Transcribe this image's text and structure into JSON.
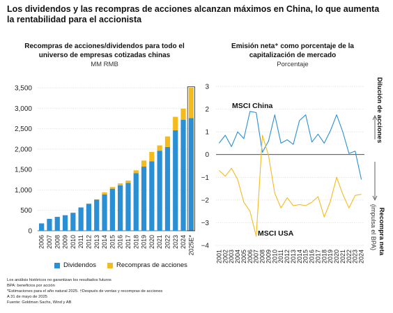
{
  "title": "Los dividendos y las recompras de acciones alcanzan máximos en China, lo que aumenta la rentabilidad para el accionista",
  "chart_data": [
    {
      "type": "bar",
      "title": "Recompras de acciones/dividendos para todo el universo de empresas cotizadas chinas",
      "subtitle": "MM RMB",
      "stacked": true,
      "categories": [
        "2006",
        "2007",
        "2008",
        "2009",
        "2010",
        "2011",
        "2012",
        "2013",
        "2014",
        "2015",
        "2016",
        "2017",
        "2018",
        "2019",
        "2020",
        "2021",
        "2022",
        "2023",
        "2024",
        "2025E*"
      ],
      "ylim": [
        0,
        3500
      ],
      "yticks": [
        0,
        500,
        1000,
        1500,
        2000,
        2500,
        3000,
        3500
      ],
      "ytick_labels": [
        "0",
        "500",
        "1,000",
        "1,500",
        "2,000",
        "2,500",
        "3,000",
        "3,500"
      ],
      "grid": true,
      "legend_position": "bottom",
      "series": [
        {
          "name": "Dividendos",
          "color": "#2a8fd4",
          "values": [
            180,
            290,
            340,
            380,
            440,
            570,
            660,
            760,
            890,
            1030,
            1110,
            1170,
            1410,
            1570,
            1700,
            1960,
            2050,
            2460,
            2720,
            2760
          ]
        },
        {
          "name": "Recompras de acciones",
          "color": "#f5bb1e",
          "values": [
            0,
            0,
            0,
            0,
            0,
            5,
            5,
            10,
            50,
            40,
            50,
            60,
            70,
            150,
            230,
            130,
            260,
            330,
            270,
            740
          ]
        }
      ],
      "highlight_last_bar": true
    },
    {
      "type": "line",
      "title": "Emisión neta⁺ como porcentaje de la capitalización de mercado",
      "subtitle": "Porcentaje",
      "x": [
        "2001",
        "2002",
        "2003",
        "2004",
        "2005",
        "2006",
        "2007",
        "2008",
        "2009",
        "2010",
        "2011",
        "2012",
        "2013",
        "2014",
        "2015",
        "2016",
        "2017",
        "2018",
        "2019",
        "2020",
        "2021",
        "2022",
        "2023",
        "2024"
      ],
      "ylim": [
        -4,
        3
      ],
      "yticks": [
        -4,
        -3,
        -2,
        -1,
        0,
        1,
        2,
        3
      ],
      "ytick_labels": [
        "−4",
        "−3",
        "−2",
        "−1",
        "0",
        "1",
        "2",
        "3"
      ],
      "grid": true,
      "right_label_top": "Dilución de acciones",
      "right_label_bottom": "Recompra neta",
      "right_label_bottom_sub": "(impulsa el BPA)",
      "series": [
        {
          "name": "MSCI China",
          "color": "#2a8fd4",
          "values": [
            0.5,
            0.85,
            0.35,
            1.0,
            0.7,
            1.9,
            1.85,
            0.1,
            0.6,
            1.75,
            0.5,
            0.65,
            0.45,
            1.5,
            1.75,
            0.55,
            0.9,
            0.5,
            1.05,
            1.75,
            1.0,
            0.05,
            0.15,
            -1.1
          ]
        },
        {
          "name": "MSCI USA",
          "color": "#f5bb1e",
          "values": [
            -0.7,
            -0.95,
            -0.6,
            -1.1,
            -2.1,
            -2.5,
            -3.6,
            0.85,
            -0.05,
            -1.7,
            -2.35,
            -1.9,
            -2.25,
            -2.2,
            -2.25,
            -2.1,
            -1.85,
            -2.75,
            -2.05,
            -1.0,
            -1.75,
            -2.35,
            -1.8,
            -1.75
          ]
        }
      ]
    }
  ],
  "footnotes": [
    "Los análisis históricos no garantizan los resultados futuros",
    "BPA: beneficios por acción",
    "*Estimaciones para el año natural 2025. †Después de ventas y recompras de acciones",
    "A 31 de mayo de 2025",
    "Fuente: Goldman Sachs, Wind y AB"
  ]
}
